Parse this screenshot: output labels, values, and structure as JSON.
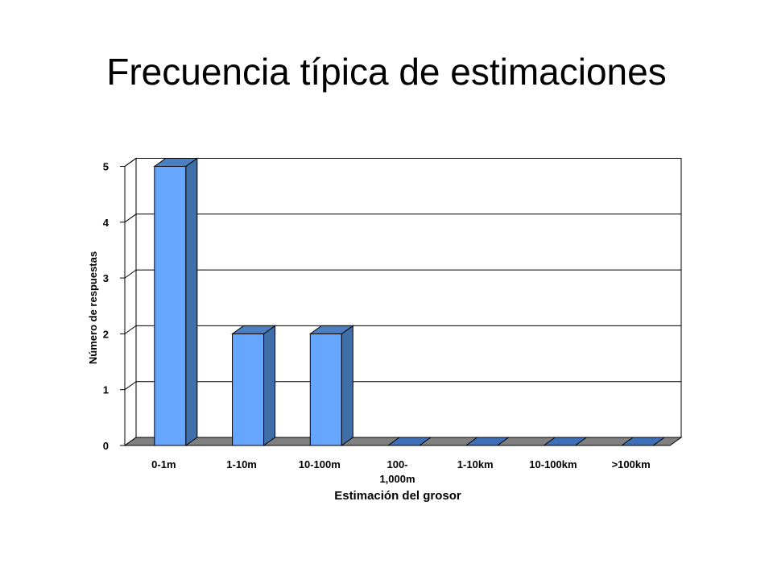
{
  "slide": {
    "title": "Frecuencia típica de estimaciones"
  },
  "chart_data": {
    "type": "bar",
    "categories": [
      "0-1m",
      "1-10m",
      "10-100m",
      "100-1,000m",
      "1-10km",
      "10-100km",
      ">100km"
    ],
    "category_labels": [
      [
        "0-1m"
      ],
      [
        "1-10m"
      ],
      [
        "10-100m"
      ],
      [
        "100-",
        "1,000m"
      ],
      [
        "1-10km"
      ],
      [
        "10-100km"
      ],
      [
        ">100km"
      ]
    ],
    "values": [
      5,
      2,
      2,
      0,
      0,
      0,
      0
    ],
    "title": "",
    "xlabel": "Estimación del grosor",
    "ylabel": "Número de respuestas",
    "ylim": [
      0,
      5
    ],
    "yticks": [
      0,
      1,
      2,
      3,
      4,
      5
    ],
    "grid": true,
    "legend": "none",
    "style": "3d-column",
    "colors": {
      "bar_front": "#66A6FF",
      "bar_side": "#3F6FA8",
      "bar_top": "#4A7FC4",
      "floor": "#808080",
      "wall": "#FFFFFF"
    }
  }
}
